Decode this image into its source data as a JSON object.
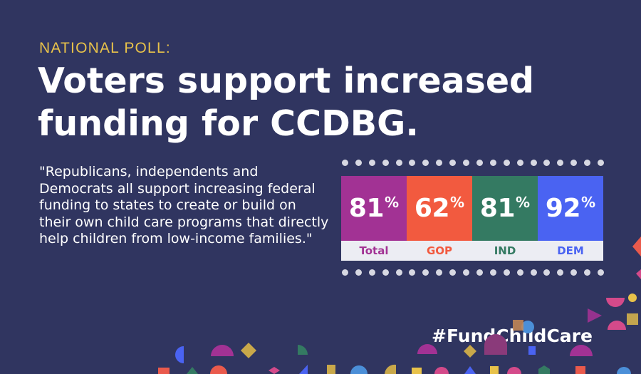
{
  "kicker": "NATIONAL POLL:",
  "headline": "Voters support increased funding for CCDBG.",
  "quote": "\"Republicans, independents and Democrats all support increasing federal funding to states to create or build on their own child care programs that directly help children from low-income families.\"",
  "hashtag": "#FundChildCare",
  "chart_data": {
    "type": "bar",
    "categories": [
      "Total",
      "GOP",
      "IND",
      "DEM"
    ],
    "values": [
      81,
      62,
      81,
      92
    ],
    "unit": "%",
    "title": "",
    "xlabel": "",
    "ylabel": "",
    "bar_colors": [
      "#a23294",
      "#f25a3f",
      "#347a62",
      "#4a63f2"
    ],
    "label_colors": [
      "#a23294",
      "#f25a3f",
      "#347a62",
      "#4a63f2"
    ]
  },
  "colors": {
    "background": "#303560",
    "kicker": "#e8c24a",
    "text": "#ffffff"
  }
}
